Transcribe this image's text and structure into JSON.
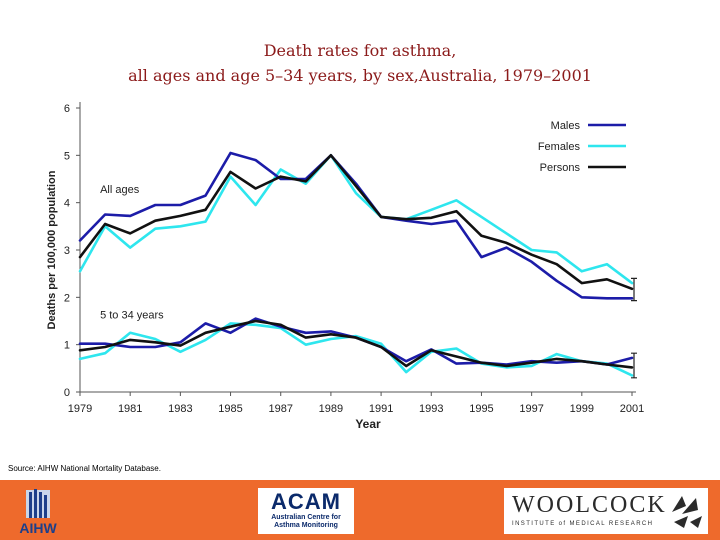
{
  "title_line1": "Death rates for asthma,",
  "title_line2": "all ages and age 5–34 years, by sex,Australia, 1979–2001",
  "source": "Source: AIHW National Mortality Database.",
  "footer": {
    "aihw_text": "AIHW",
    "acam_text": "ACAM",
    "acam_subtext_line1": "Australian Centre for",
    "acam_subtext_line2": "Asthma Monitoring",
    "woolcock_text": "WOOLCOCK",
    "woolcock_subtext": "INSTITUTE of MEDICAL RESEARCH"
  },
  "chart_data": {
    "type": "line",
    "xlabel": "Year",
    "ylabel": "Deaths per 100,000 population",
    "xlim": [
      1979,
      2001
    ],
    "ylim": [
      0,
      6
    ],
    "x_ticks": [
      "1979",
      "1981",
      "1983",
      "1985",
      "1987",
      "1989",
      "1991",
      "1993",
      "1995",
      "1997",
      "1999",
      "2001"
    ],
    "y_ticks": [
      "0",
      "1",
      "2",
      "3",
      "4",
      "5",
      "6"
    ],
    "x": [
      1979,
      1980,
      1981,
      1982,
      1983,
      1984,
      1985,
      1986,
      1987,
      1988,
      1989,
      1990,
      1991,
      1992,
      1993,
      1994,
      1995,
      1996,
      1997,
      1998,
      1999,
      2000,
      2001
    ],
    "legend_position": "top-right",
    "legend": [
      {
        "label": "Males",
        "color": "#1c1ca8"
      },
      {
        "label": "Females",
        "color": "#2ee6ee"
      },
      {
        "label": "Persons",
        "color": "#111111"
      }
    ],
    "annotations": [
      {
        "text": "All ages",
        "x": 1979.8,
        "y": 4.2
      },
      {
        "text": "5 to 34 years",
        "x": 1979.8,
        "y": 1.55
      }
    ],
    "series": [
      {
        "group": "All ages",
        "legend_ref": "Males",
        "color": "#1c1ca8",
        "values": [
          3.2,
          3.75,
          3.72,
          3.95,
          3.95,
          4.15,
          5.05,
          4.9,
          4.5,
          4.5,
          5.0,
          4.4,
          3.7,
          3.62,
          3.55,
          3.62,
          2.85,
          3.05,
          2.75,
          2.35,
          2.0,
          1.98,
          1.98
        ]
      },
      {
        "group": "All ages",
        "legend_ref": "Females",
        "color": "#2ee6ee",
        "values": [
          2.55,
          3.5,
          3.05,
          3.45,
          3.5,
          3.6,
          4.55,
          3.95,
          4.7,
          4.4,
          5.0,
          4.2,
          3.7,
          3.65,
          3.85,
          4.05,
          3.7,
          3.35,
          3.0,
          2.95,
          2.55,
          2.7,
          2.3
        ]
      },
      {
        "group": "All ages",
        "legend_ref": "Persons",
        "color": "#111111",
        "values": [
          2.85,
          3.55,
          3.35,
          3.62,
          3.72,
          3.85,
          4.65,
          4.3,
          4.55,
          4.45,
          5.0,
          4.35,
          3.7,
          3.65,
          3.68,
          3.82,
          3.3,
          3.15,
          2.9,
          2.7,
          2.3,
          2.38,
          2.18
        ]
      },
      {
        "group": "5 to 34 years",
        "legend_ref": "Males",
        "color": "#1c1ca8",
        "values": [
          1.02,
          1.02,
          0.95,
          0.95,
          1.05,
          1.45,
          1.25,
          1.55,
          1.38,
          1.25,
          1.28,
          1.15,
          0.95,
          0.65,
          0.9,
          0.6,
          0.62,
          0.58,
          0.65,
          0.62,
          0.65,
          0.58,
          0.72
        ]
      },
      {
        "group": "5 to 34 years",
        "legend_ref": "Females",
        "color": "#2ee6ee",
        "values": [
          0.7,
          0.82,
          1.25,
          1.12,
          0.85,
          1.1,
          1.45,
          1.42,
          1.35,
          1.0,
          1.12,
          1.18,
          1.02,
          0.42,
          0.85,
          0.92,
          0.6,
          0.52,
          0.55,
          0.8,
          0.65,
          0.6,
          0.35
        ]
      },
      {
        "group": "5 to 34 years",
        "legend_ref": "Persons",
        "color": "#111111",
        "values": [
          0.88,
          0.95,
          1.1,
          1.05,
          0.98,
          1.25,
          1.38,
          1.5,
          1.42,
          1.15,
          1.22,
          1.15,
          0.95,
          0.55,
          0.88,
          0.75,
          0.62,
          0.55,
          0.62,
          0.7,
          0.65,
          0.58,
          0.52
        ]
      }
    ]
  }
}
